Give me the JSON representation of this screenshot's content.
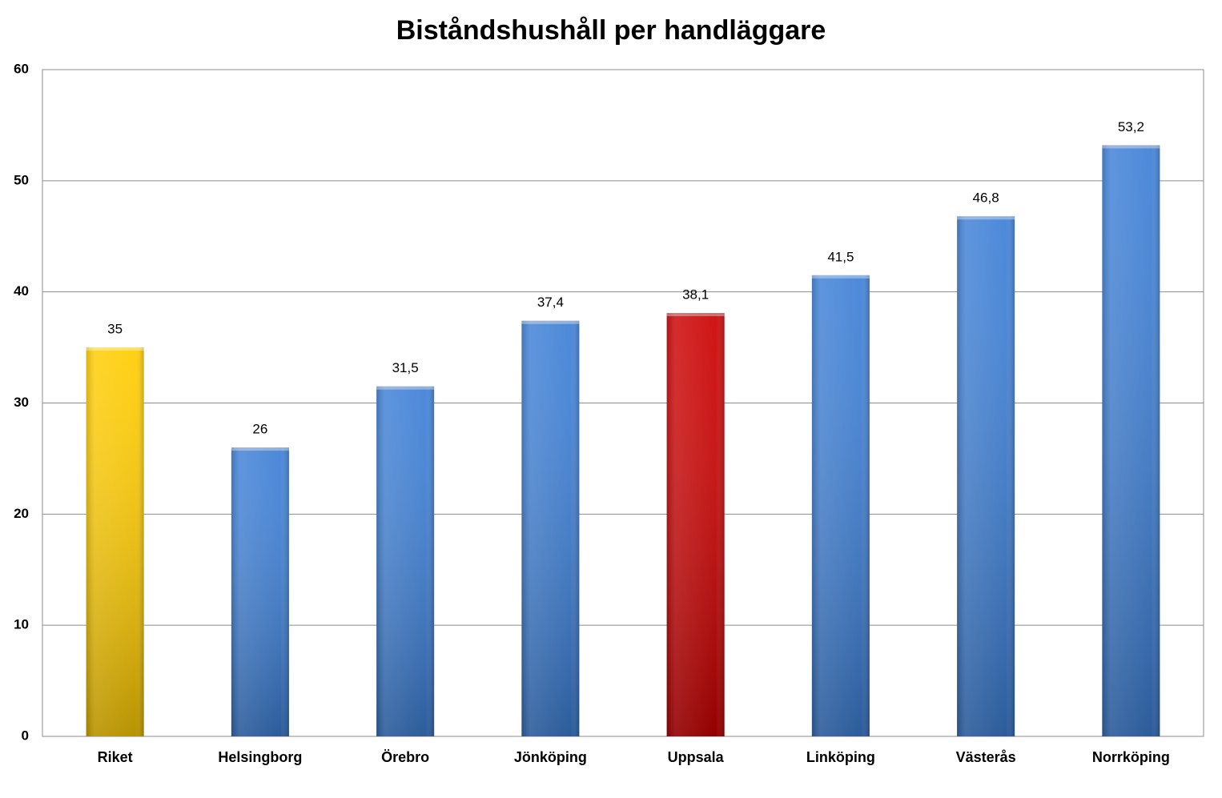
{
  "chart_data": {
    "type": "bar",
    "title": "Biståndshushåll per handläggare",
    "categories": [
      "Riket",
      "Helsingborg",
      "Örebro",
      "Jönköping",
      "Uppsala",
      "Linköping",
      "Västerås",
      "Norrköping"
    ],
    "values": [
      35,
      26,
      31.5,
      37.4,
      38.1,
      41.5,
      46.8,
      53.2
    ],
    "value_labels": [
      "35",
      "26",
      "31,5",
      "37,4",
      "38,1",
      "41,5",
      "46,8",
      "53,2"
    ],
    "colors": [
      "#ffcc00",
      "#3d7fd6",
      "#3d7fd6",
      "#3d7fd6",
      "#cc0000",
      "#3d7fd6",
      "#3d7fd6",
      "#3d7fd6"
    ],
    "ylim": [
      0,
      60
    ],
    "yticks": [
      0,
      10,
      20,
      30,
      40,
      50,
      60
    ],
    "grid": true
  }
}
